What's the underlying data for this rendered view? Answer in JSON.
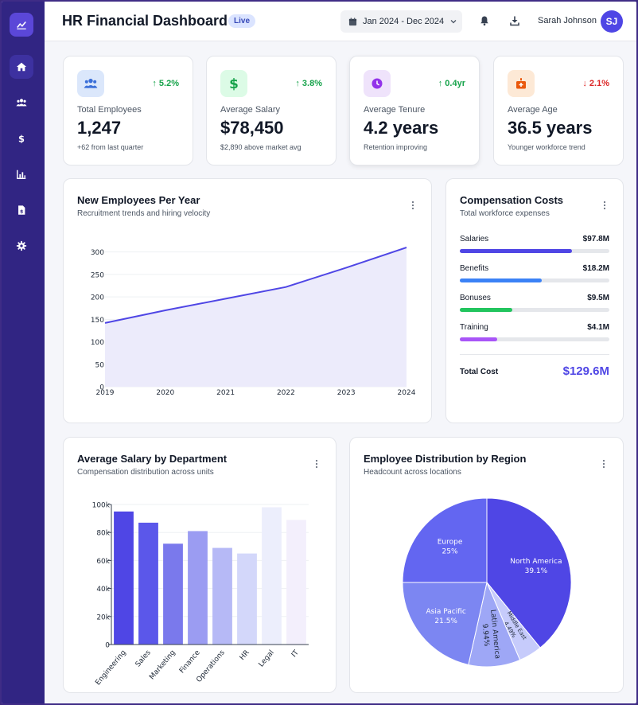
{
  "header": {
    "title": "HR Financial Dashboard",
    "badge": "Live",
    "date_range": "Jan 2024 - Dec 2024",
    "user_name": "Sarah Johnson",
    "user_initials": "SJ"
  },
  "sidebar": {
    "items": [
      {
        "icon": "home-icon",
        "active": true
      },
      {
        "icon": "users-icon",
        "active": false
      },
      {
        "icon": "dollar-icon",
        "active": false
      },
      {
        "icon": "bar-chart-icon",
        "active": false
      },
      {
        "icon": "document-icon",
        "active": false
      },
      {
        "icon": "gear-icon",
        "active": false
      }
    ]
  },
  "kpis": [
    {
      "label": "Total Employees",
      "value": "1,247",
      "delta": "5.2%",
      "direction": "up",
      "sub": "+62 from last quarter",
      "icon": "users-icon",
      "bg": "#dbe7fb",
      "fg": "#3b6fd8"
    },
    {
      "label": "Average Salary",
      "value": "$78,450",
      "delta": "3.8%",
      "direction": "up",
      "sub": "$2,890 above market avg",
      "icon": "dollar-icon",
      "bg": "#dcfbe6",
      "fg": "#16a34a"
    },
    {
      "label": "Average Tenure",
      "value": "4.2 years",
      "delta": "0.4yr",
      "direction": "up",
      "sub": "Retention improving",
      "icon": "clock-icon",
      "bg": "#efe3fb",
      "fg": "#9333ea"
    },
    {
      "label": "Average Age",
      "value": "36.5 years",
      "delta": "2.1%",
      "direction": "down",
      "sub": "Younger workforce trend",
      "icon": "birthday-cake-icon",
      "bg": "#fde9d6",
      "fg": "#ea580c"
    }
  ],
  "colors": {
    "up": "#16a34a",
    "down": "#dc2626",
    "accent": "#4f46e5"
  },
  "line_panel": {
    "title": "New Employees Per Year",
    "subtitle": "Recruitment trends and hiring velocity"
  },
  "compensation": {
    "title": "Compensation Costs",
    "subtitle": "Total workforce expenses",
    "rows": [
      {
        "name": "Salaries",
        "value": "$97.8M",
        "fraction": 0.75,
        "color": "#4f46e5"
      },
      {
        "name": "Benefits",
        "value": "$18.2M",
        "fraction": 0.55,
        "color": "#3b82f6"
      },
      {
        "name": "Bonuses",
        "value": "$9.5M",
        "fraction": 0.35,
        "color": "#22c55e"
      },
      {
        "name": "Training",
        "value": "$4.1M",
        "fraction": 0.25,
        "color": "#a855f7"
      }
    ],
    "total_label": "Total Cost",
    "total_value": "$129.6M"
  },
  "bar_panel": {
    "title": "Average Salary by Department",
    "subtitle": "Compensation distribution across units"
  },
  "pie_panel": {
    "title": "Employee Distribution by Region",
    "subtitle": "Headcount across locations"
  },
  "chart_data": [
    {
      "type": "area",
      "x": [
        "2019",
        "2020",
        "2021",
        "2022",
        "2023",
        "2024"
      ],
      "values": [
        142,
        170,
        196,
        222,
        265,
        310
      ],
      "ylim": [
        0,
        310
      ],
      "yticks": [
        0,
        50,
        100,
        150,
        200,
        250,
        300
      ],
      "grid": true,
      "color": "#4f46e5",
      "fill": "#ecebfb"
    },
    {
      "type": "bar",
      "categories": [
        "Engineering",
        "Sales",
        "Marketing",
        "Finance",
        "Operations",
        "HR",
        "Legal",
        "IT"
      ],
      "values": [
        95000,
        87000,
        72000,
        81000,
        69000,
        65000,
        98000,
        89000
      ],
      "colors": [
        "#4f46e5",
        "#5b57ea",
        "#7a79ec",
        "#9b9cf2",
        "#b6b9f6",
        "#d3d7fa",
        "#eceefc",
        "#f3effc"
      ],
      "ylim": [
        0,
        100000
      ],
      "yticks": [
        0,
        20000,
        40000,
        60000,
        80000,
        100000
      ],
      "ytick_labels": [
        "0",
        "20k",
        "40k",
        "60k",
        "80k",
        "100k"
      ],
      "grid": true
    },
    {
      "type": "pie",
      "slices": [
        {
          "label": "North America",
          "value": 39.1,
          "display": "39.1%",
          "color": "#4f46e5"
        },
        {
          "label": "Middle East",
          "value": 4.49,
          "display": "4.49%",
          "color": "#c6cbfb"
        },
        {
          "label": "Latin America",
          "value": 9.94,
          "display": "9.94%",
          "color": "#9ea7f6"
        },
        {
          "label": "Asia Pacific",
          "value": 21.5,
          "display": "21.5%",
          "color": "#7c86f2"
        },
        {
          "label": "Europe",
          "value": 25,
          "display": "25%",
          "color": "#6366f1"
        }
      ]
    }
  ]
}
